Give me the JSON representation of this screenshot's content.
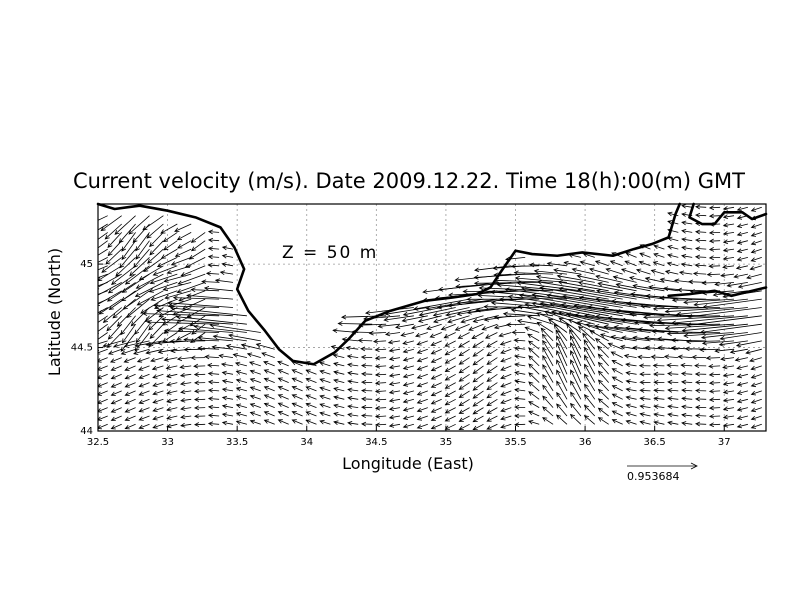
{
  "chart_data": {
    "type": "vector-field",
    "title": "Current velocity (m/s). Date 2009.12.22. Time 18(h):00(m) GMT",
    "xlabel": "Longitude (East)",
    "ylabel": "Latitude (North)",
    "xlim": [
      32.5,
      37.3
    ],
    "ylim": [
      44.0,
      45.36
    ],
    "x_ticks": [
      32.5,
      33,
      33.5,
      34,
      34.5,
      35,
      35.5,
      36,
      36.5,
      37
    ],
    "x_tick_labels": [
      "32.5",
      "33",
      "33.5",
      "34",
      "34.5",
      "35",
      "35.5",
      "36",
      "36.5",
      "37"
    ],
    "y_ticks": [
      44,
      44.5,
      45
    ],
    "y_tick_labels": [
      "44",
      "44.5",
      "45"
    ],
    "grid": true,
    "annotation": "Z  =  50  m",
    "reference_vector": {
      "value": 0.953684,
      "label": "0.953684"
    },
    "vector_grid": {
      "dx_deg": 0.1,
      "dy_deg": 0.05
    },
    "coastline": [
      [
        [
          32.5,
          45.36
        ],
        [
          32.62,
          45.33
        ],
        [
          32.8,
          45.35
        ],
        [
          33.0,
          45.32
        ],
        [
          33.2,
          45.28
        ],
        [
          33.38,
          45.22
        ],
        [
          33.48,
          45.1
        ],
        [
          33.55,
          44.97
        ],
        [
          33.5,
          44.85
        ],
        [
          33.58,
          44.72
        ],
        [
          33.7,
          44.6
        ],
        [
          33.8,
          44.49
        ],
        [
          33.9,
          44.42
        ],
        [
          34.05,
          44.4
        ],
        [
          34.2,
          44.47
        ],
        [
          34.3,
          44.55
        ],
        [
          34.42,
          44.66
        ],
        [
          34.6,
          44.72
        ],
        [
          34.85,
          44.78
        ],
        [
          35.05,
          44.8
        ],
        [
          35.22,
          44.82
        ],
        [
          35.32,
          44.86
        ],
        [
          35.4,
          44.96
        ],
        [
          35.5,
          45.08
        ],
        [
          35.62,
          45.06
        ],
        [
          35.8,
          45.05
        ],
        [
          35.98,
          45.07
        ],
        [
          36.2,
          45.05
        ],
        [
          36.35,
          45.09
        ],
        [
          36.48,
          45.12
        ],
        [
          36.6,
          45.16
        ],
        [
          36.65,
          45.3
        ],
        [
          36.68,
          45.36
        ]
      ],
      [
        [
          36.78,
          45.36
        ],
        [
          36.75,
          45.28
        ],
        [
          36.84,
          45.24
        ],
        [
          36.93,
          45.24
        ],
        [
          37.0,
          45.31
        ],
        [
          37.13,
          45.31
        ],
        [
          37.2,
          45.27
        ],
        [
          37.3,
          45.3
        ]
      ],
      [
        [
          36.6,
          44.81
        ],
        [
          36.75,
          44.82
        ],
        [
          36.93,
          44.84
        ],
        [
          37.05,
          44.81
        ],
        [
          37.15,
          44.83
        ],
        [
          37.3,
          44.86
        ]
      ]
    ]
  }
}
